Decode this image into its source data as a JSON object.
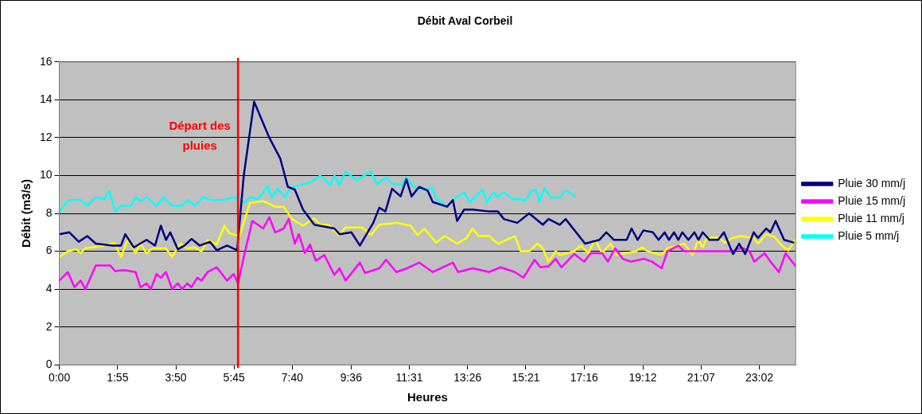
{
  "chart_data": {
    "type": "line",
    "title": "Débit Aval Corbeil",
    "xlabel": "Heures",
    "ylabel": "Débit (m3/s)",
    "xlim": [
      0,
      24.23
    ],
    "xticks": [
      {
        "value": 0,
        "label": "0:00"
      },
      {
        "value": 1.9167,
        "label": "1:55"
      },
      {
        "value": 3.8333,
        "label": "3:50"
      },
      {
        "value": 5.75,
        "label": "5:45"
      },
      {
        "value": 7.6667,
        "label": "7:40"
      },
      {
        "value": 9.6,
        "label": "9:36"
      },
      {
        "value": 11.5167,
        "label": "11:31"
      },
      {
        "value": 13.4333,
        "label": "13:26"
      },
      {
        "value": 15.35,
        "label": "15:21"
      },
      {
        "value": 17.2667,
        "label": "17:16"
      },
      {
        "value": 19.2,
        "label": "19:12"
      },
      {
        "value": 21.1167,
        "label": "21:07"
      },
      {
        "value": 23.0333,
        "label": "23:02"
      }
    ],
    "ylim": [
      0,
      16
    ],
    "yticks": [
      0,
      2,
      4,
      6,
      8,
      10,
      12,
      14,
      16
    ],
    "grid": "y",
    "legend": "right",
    "ref_lines": [
      {
        "axis": "x",
        "value": 5.88,
        "label": "Départ des pluies",
        "color": "#ff0000"
      }
    ],
    "series": [
      {
        "name": "Pluie 30 mm/j",
        "color": "#000080",
        "x": [
          0,
          0.33,
          0.64,
          0.92,
          1.2,
          1.76,
          2.03,
          2.17,
          2.45,
          2.87,
          3.15,
          3.34,
          3.51,
          3.65,
          3.9,
          4.12,
          4.35,
          4.62,
          4.96,
          5.18,
          5.52,
          5.85,
          6.07,
          6.41,
          6.91,
          7.27,
          7.52,
          7.75,
          8.02,
          8.39,
          9.05,
          9.22,
          9.61,
          9.89,
          10.33,
          10.53,
          10.73,
          10.95,
          11.23,
          11.42,
          11.59,
          11.84,
          12.12,
          12.29,
          12.76,
          12.95,
          13.09,
          13.32,
          13.6,
          14.15,
          14.43,
          14.63,
          15.07,
          15.46,
          15.91,
          16.1,
          16.47,
          16.66,
          17.3,
          17.77,
          18.0,
          18.25,
          18.67,
          18.83,
          19.03,
          19.22,
          19.53,
          19.72,
          19.92,
          20.06,
          20.23,
          20.37,
          20.5,
          20.7,
          20.9,
          21.03,
          21.17,
          21.4,
          21.68,
          21.87,
          22.17,
          22.37,
          22.57,
          22.85,
          22.99,
          23.26,
          23.4,
          23.57,
          23.85,
          24.18
        ],
        "values": [
          6.9,
          7.0,
          6.5,
          6.8,
          6.4,
          6.3,
          6.3,
          6.9,
          6.2,
          6.6,
          6.3,
          7.35,
          6.6,
          7.0,
          6.1,
          6.3,
          6.65,
          6.3,
          6.5,
          6.05,
          6.3,
          6.05,
          10,
          13.9,
          12.0,
          10.9,
          9.4,
          9.25,
          8.2,
          7.4,
          7.2,
          6.9,
          7.0,
          6.3,
          7.5,
          8.3,
          8.1,
          9.3,
          8.9,
          9.8,
          8.9,
          9.4,
          9.2,
          8.6,
          8.35,
          8.7,
          7.6,
          8.2,
          8.2,
          8.1,
          8.1,
          7.7,
          7.5,
          8.0,
          7.4,
          7.7,
          7.4,
          7.7,
          6.4,
          6.6,
          7.0,
          6.6,
          6.6,
          7.2,
          6.6,
          7.1,
          7.0,
          6.6,
          7.0,
          6.6,
          7.0,
          6.6,
          7.0,
          6.6,
          7.0,
          6.6,
          7.0,
          6.6,
          6.6,
          7.0,
          5.85,
          6.4,
          5.85,
          7.0,
          6.7,
          7.2,
          7.0,
          7.6,
          6.6,
          6.45
        ]
      },
      {
        "name": "Pluie 15 mm/j",
        "color": "#ff00ff",
        "x": [
          0,
          0.28,
          0.5,
          0.7,
          0.86,
          1.2,
          1.67,
          1.84,
          2.12,
          2.51,
          2.67,
          2.87,
          3.01,
          3.2,
          3.34,
          3.51,
          3.71,
          3.9,
          4.04,
          4.21,
          4.35,
          4.54,
          4.68,
          4.88,
          5.18,
          5.52,
          5.74,
          5.88,
          6.07,
          6.35,
          6.71,
          6.91,
          7.1,
          7.38,
          7.55,
          7.75,
          7.88,
          8.08,
          8.25,
          8.44,
          8.72,
          9.05,
          9.22,
          9.42,
          9.89,
          10.06,
          10.53,
          10.75,
          11.09,
          11.45,
          11.84,
          12.29,
          12.95,
          13.12,
          13.6,
          14.15,
          14.52,
          14.99,
          15.27,
          15.64,
          15.83,
          16.1,
          16.33,
          16.52,
          16.94,
          17.27,
          17.49,
          17.86,
          18.05,
          18.29,
          18.54,
          18.81,
          19.25,
          19.5,
          19.82,
          20.01,
          20.37,
          20.56,
          21.2,
          22.15,
          22.43,
          22.71,
          22.87,
          23.21,
          23.4,
          23.68,
          23.9,
          24.23
        ],
        "values": [
          4.45,
          4.9,
          4.1,
          4.45,
          4.0,
          5.25,
          5.25,
          4.95,
          5.0,
          4.9,
          4.1,
          4.3,
          4.0,
          4.8,
          4.6,
          4.9,
          4.0,
          4.3,
          4.0,
          4.3,
          4.1,
          4.6,
          4.45,
          4.9,
          5.15,
          4.45,
          4.8,
          4.3,
          5.7,
          7.6,
          7.2,
          7.8,
          7.0,
          7.2,
          7.7,
          6.4,
          6.9,
          5.9,
          6.35,
          5.5,
          5.8,
          4.75,
          5.1,
          4.45,
          5.4,
          4.85,
          5.1,
          5.55,
          4.9,
          5.1,
          5.4,
          4.9,
          5.4,
          4.9,
          5.1,
          4.9,
          5.15,
          4.9,
          4.6,
          5.55,
          5.15,
          5.2,
          5.6,
          5.15,
          5.85,
          5.45,
          5.9,
          5.9,
          5.45,
          6.15,
          5.6,
          5.45,
          5.6,
          5.45,
          5.1,
          6.0,
          6.3,
          6.0,
          6.0,
          6.0,
          6.2,
          6.0,
          5.45,
          5.9,
          5.45,
          4.9,
          5.9,
          5.2
        ]
      },
      {
        "name": "Pluie 11 mm/j",
        "color": "#ffff00",
        "x": [
          0,
          0.28,
          0.56,
          0.7,
          0.84,
          1.48,
          1.81,
          2.03,
          2.26,
          2.51,
          2.67,
          2.87,
          3.06,
          3.51,
          3.71,
          3.98,
          4.21,
          4.46,
          4.68,
          4.88,
          5.18,
          5.43,
          5.6,
          5.93,
          6.27,
          6.71,
          7.1,
          7.38,
          7.66,
          8.02,
          8.39,
          8.58,
          8.86,
          9.2,
          9.42,
          9.97,
          10.25,
          10.53,
          11.09,
          11.56,
          11.79,
          12.01,
          12.4,
          12.68,
          13.09,
          13.4,
          13.6,
          13.79,
          14.15,
          14.43,
          14.71,
          14.99,
          15.18,
          15.46,
          15.74,
          15.91,
          16.1,
          16.33,
          16.47,
          16.94,
          17.16,
          17.41,
          17.63,
          17.86,
          18.14,
          18.33,
          18.97,
          19.17,
          19.36,
          19.81,
          20.01,
          20.56,
          20.84,
          21.03,
          21.17,
          21.31,
          21.68,
          21.9,
          22.15,
          22.43,
          22.85,
          22.99,
          23.26,
          23.54,
          23.77,
          23.99,
          24.23
        ],
        "values": [
          5.7,
          6.0,
          6.1,
          5.9,
          6.15,
          6.3,
          6.45,
          5.7,
          6.65,
          5.9,
          6.4,
          5.9,
          6.15,
          6.15,
          5.7,
          6.4,
          6.15,
          6.2,
          6.0,
          6.6,
          6.35,
          7.35,
          6.95,
          6.8,
          8.55,
          8.65,
          8.35,
          8.35,
          7.7,
          7.35,
          7.75,
          7.4,
          7.4,
          6.85,
          7.25,
          7.25,
          6.85,
          7.4,
          7.5,
          7.35,
          6.85,
          7.2,
          6.45,
          6.8,
          6.4,
          6.7,
          7.2,
          6.8,
          6.8,
          6.4,
          6.6,
          6.8,
          6.0,
          6.0,
          6.4,
          6.15,
          5.45,
          6.0,
          5.8,
          6.0,
          6.3,
          5.9,
          6.6,
          5.9,
          6.4,
          5.8,
          6.0,
          6.2,
          6.0,
          5.8,
          6.15,
          6.4,
          5.8,
          6.6,
          6.2,
          6.7,
          6.75,
          6.45,
          6.7,
          6.8,
          6.7,
          6.4,
          6.9,
          6.75,
          6.3,
          6.05,
          6.65
        ]
      },
      {
        "name": "Pluie 5 mm/j",
        "color": "#00ffff",
        "x": [
          0,
          0.31,
          0.7,
          0.92,
          1.2,
          1.48,
          1.64,
          1.84,
          2.03,
          2.37,
          2.51,
          2.67,
          2.87,
          3.2,
          3.43,
          3.71,
          4.04,
          4.21,
          4.46,
          4.74,
          5.01,
          5.38,
          5.74,
          5.99,
          6.07,
          6.27,
          6.55,
          6.85,
          6.99,
          7.19,
          7.41,
          7.61,
          7.94,
          8.3,
          8.58,
          8.92,
          9.05,
          9.22,
          9.42,
          9.78,
          10.25,
          10.45,
          10.75,
          10.95,
          11.28,
          11.42,
          11.65,
          12.01,
          12.26,
          12.4,
          12.76,
          12.98,
          13.32,
          13.51,
          13.93,
          14.07,
          14.29,
          14.43,
          14.63,
          14.93,
          15.18,
          15.32,
          15.55,
          15.68,
          15.8,
          15.96,
          16.16,
          16.47,
          16.66,
          16.8,
          16.99
        ],
        "values": [
          8.1,
          8.7,
          8.7,
          8.4,
          8.85,
          8.75,
          9.2,
          8.1,
          8.4,
          8.4,
          8.85,
          8.65,
          8.85,
          8.4,
          8.85,
          8.4,
          8.4,
          8.7,
          8.4,
          8.85,
          8.7,
          8.7,
          8.85,
          8.75,
          8.55,
          8.85,
          8.75,
          9.45,
          8.85,
          9.3,
          8.85,
          9.35,
          9.5,
          9.65,
          10.0,
          9.5,
          10.0,
          9.5,
          10.2,
          9.75,
          10.2,
          9.55,
          9.9,
          9.55,
          9.5,
          9.9,
          9.4,
          9.25,
          9.35,
          8.8,
          8.35,
          8.75,
          9.1,
          8.6,
          9.25,
          8.6,
          9.1,
          8.85,
          9.1,
          8.75,
          8.75,
          8.65,
          9.2,
          9.25,
          8.6,
          9.35,
          8.85,
          8.85,
          9.2,
          9.1,
          8.85
        ]
      }
    ]
  }
}
